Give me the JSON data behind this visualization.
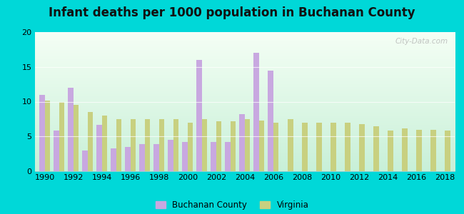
{
  "title": "Infant deaths per 1000 population in Buchanan County",
  "years": [
    1990,
    1991,
    1992,
    1993,
    1994,
    1995,
    1996,
    1997,
    1998,
    1999,
    2000,
    2001,
    2002,
    2003,
    2004,
    2005,
    2006,
    2007,
    2008,
    2009,
    2010,
    2011,
    2012,
    2013,
    2014,
    2015,
    2016,
    2017,
    2018
  ],
  "buchanan": [
    11.0,
    5.8,
    12.0,
    3.0,
    6.7,
    3.3,
    3.5,
    3.9,
    3.9,
    4.5,
    4.2,
    16.0,
    4.2,
    4.2,
    8.2,
    17.0,
    14.5,
    0,
    0,
    0,
    0,
    0,
    0,
    0,
    0,
    0,
    0,
    0,
    0
  ],
  "virginia": [
    10.2,
    10.0,
    9.5,
    8.5,
    8.0,
    7.5,
    7.5,
    7.5,
    7.5,
    7.5,
    7.0,
    7.5,
    7.2,
    7.2,
    7.5,
    7.3,
    7.0,
    7.5,
    7.0,
    7.0,
    7.0,
    7.0,
    6.8,
    6.5,
    5.8,
    6.2,
    6.0,
    6.0,
    5.8
  ],
  "buchanan_color": "#c8a8e0",
  "virginia_color": "#c8d080",
  "outer_bg": "#00d8d8",
  "plot_bg_top": "#f5fff5",
  "plot_bg_bottom": "#c8f0d8",
  "ylim": [
    0,
    20
  ],
  "yticks": [
    0,
    5,
    10,
    15,
    20
  ],
  "watermark": "City-Data.com",
  "legend_buchanan": "Buchanan County",
  "legend_virginia": "Virginia",
  "title_fontsize": 12
}
